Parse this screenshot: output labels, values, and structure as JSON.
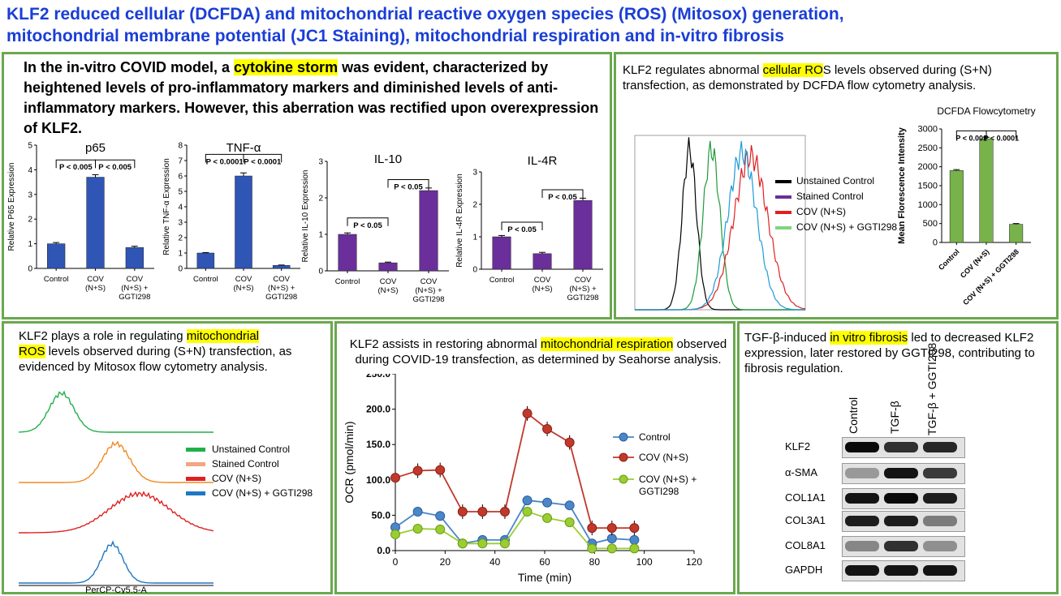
{
  "title": {
    "line1": "KLF2 reduced cellular (DCFDA) and mitochondrial  reactive oxygen species  (ROS) (Mitosox) generation,",
    "line2": "mitochondrial membrane potential (JC1 Staining), mitochondrial respiration and in-vitro fibrosis"
  },
  "panel1": {
    "text_a": "In the in-vitro COVID model, a ",
    "text_hl": "cytokine storm",
    "text_b": " was evident, characterized by heightened levels of pro-inflammatory markers and diminished levels of anti-inflammatory markers. However, this aberration was rectified upon overexpression of KLF2."
  },
  "panel2": {
    "text_a": "KLF2 regulates abnormal ",
    "text_hl": "cellular RO",
    "text_b": "S levels observed during (S+N) transfection, as demonstrated by DCFDA flow cytometry analysis.",
    "legend": [
      "Unstained Control",
      "Stained Control",
      "COV (N+S)",
      "COV (N+S) + GGTI298"
    ]
  },
  "panel3": {
    "text_a": "KLF2 plays a role in regulating ",
    "text_hl1": "mitochondrial",
    "text_hl2": "ROS",
    "text_b": " levels observed during (S+N) transfection, as evidenced by Mitosox flow cytometry analysis.",
    "legend": [
      "Unstained Control",
      "Stained Control",
      "COV (N+S)",
      "COV (N+S) + GGTI298"
    ],
    "xlabel": "PerCP-Cy5.5-A"
  },
  "panel4": {
    "text_a": "KLF2 assists in restoring abnormal ",
    "text_hl": "mitochondrial respiration",
    "text_b": " observed during COVID-19 transfection, as determined by Seahorse analysis."
  },
  "panel5": {
    "text_a": "TGF-β-induced ",
    "text_hl": "in vitro fibrosis",
    "text_b": " led to decreased KLF2 expression, later restored by GGTI298, contributing to fibrosis regulation.",
    "columns": [
      "Control",
      "TGF-β",
      "TGF-β + GGTI298"
    ],
    "rows": [
      "KLF2",
      "α-SMA",
      "COL1A1",
      "COL3A1",
      "COL8A1",
      "GAPDH"
    ]
  },
  "colors": {
    "title": "#1a3ed6",
    "border": "#6aa84f",
    "highlight": "#ffff00",
    "bar_blue": "#2f55b5",
    "bar_purple": "#6a2f9a",
    "bar_green": "#77b24a",
    "seahorse_control": "#4a86c8",
    "seahorse_cov": "#c0392b",
    "seahorse_ggti": "#9acd32"
  },
  "chart_data": [
    {
      "type": "bar",
      "title": "p65",
      "ylabel": "Relative P65 Expression",
      "categories": [
        "Control",
        "COV (N+S)",
        "COV (N+S) + GGTI298"
      ],
      "values": [
        1.0,
        3.7,
        0.85
      ],
      "errors": [
        0.05,
        0.1,
        0.05
      ],
      "ylim": [
        0,
        5
      ],
      "annotations": [
        "P < 0.005",
        "P < 0.005"
      ],
      "color": "#2f55b5"
    },
    {
      "type": "bar",
      "title": "TNF-α",
      "ylabel": "Relative TNF-α Expression",
      "categories": [
        "Control",
        "COV (N+S)",
        "COV (N+S) + GGTI298"
      ],
      "values": [
        1.0,
        6.0,
        0.2
      ],
      "errors": [
        0.03,
        0.2,
        0.02
      ],
      "ylim": [
        0,
        8
      ],
      "annotations": [
        "P < 0.0001",
        "P < 0.0001"
      ],
      "color": "#2f55b5"
    },
    {
      "type": "bar",
      "title": "IL-10",
      "ylabel": "Relative IL-10 Expression",
      "categories": [
        "Control",
        "COV (N+S)",
        "COV (N+S) + GGTI298"
      ],
      "values": [
        1.0,
        0.22,
        2.2
      ],
      "errors": [
        0.04,
        0.02,
        0.07
      ],
      "ylim": [
        0,
        3
      ],
      "annotations": [
        "P < 0.05",
        "P < 0.05"
      ],
      "color": "#6a2f9a"
    },
    {
      "type": "bar",
      "title": "IL-4R",
      "ylabel": "Relative IL-4R Expression",
      "categories": [
        "Control",
        "COV (N+S)",
        "COV (N+S) + GGTI298"
      ],
      "values": [
        1.0,
        0.48,
        2.12
      ],
      "errors": [
        0.04,
        0.04,
        0.07
      ],
      "ylim": [
        0,
        3
      ],
      "annotations": [
        "P < 0.05",
        "P < 0.05"
      ],
      "color": "#6a2f9a"
    },
    {
      "type": "bar",
      "title": "DCFDA Flowcytometry",
      "ylabel": "Mean Florescence Intensity",
      "categories": [
        "Control",
        "COV (N+S)",
        "COV (N+S) + GGTI298"
      ],
      "values": [
        1900,
        2740,
        480
      ],
      "errors": [
        25,
        40,
        20
      ],
      "ylim": [
        0,
        3000
      ],
      "annotations": [
        "P < 0.001",
        "P < 0.0001"
      ],
      "color": "#77b24a"
    },
    {
      "type": "line",
      "ylabel": "OCR (pmol/min)",
      "xlabel": "Time (min)",
      "xlim": [
        0,
        120
      ],
      "ylim": [
        0,
        250
      ],
      "x": [
        0,
        9,
        18,
        27,
        35,
        44,
        53,
        61,
        70,
        79,
        87,
        96
      ],
      "series": [
        {
          "name": "Control",
          "values": [
            33,
            55,
            49,
            10,
            15,
            15,
            71,
            68,
            64,
            10,
            17,
            15
          ]
        },
        {
          "name": "COV (N+S)",
          "values": [
            103,
            113,
            114,
            55,
            55,
            55,
            194,
            172,
            153,
            32,
            32,
            32
          ]
        },
        {
          "name": "COV (N+S) + GGTI298",
          "values": [
            23,
            31,
            30,
            10,
            10,
            10,
            55,
            46,
            40,
            3,
            3,
            3
          ]
        }
      ]
    }
  ]
}
